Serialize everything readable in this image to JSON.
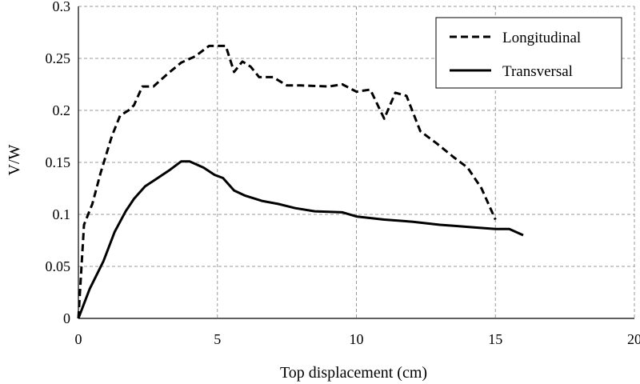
{
  "chart_data": {
    "type": "line",
    "xlabel": "Top displacement (cm)",
    "ylabel": "V/W",
    "xlim": [
      0,
      20
    ],
    "ylim": [
      0,
      0.3
    ],
    "xticks": [
      0,
      5,
      10,
      15,
      20
    ],
    "xtick_labels": [
      "0",
      "5",
      "10",
      "15",
      "20"
    ],
    "yticks": [
      0,
      0.05,
      0.1,
      0.15,
      0.2,
      0.25,
      0.3
    ],
    "ytick_labels": [
      "0",
      "0.05",
      "0.1",
      "0.15",
      "0.2",
      "0.25",
      "0.3"
    ],
    "grid": true,
    "legend_position": "top-right",
    "series": [
      {
        "name": "Longitudinal",
        "style": "dashed",
        "color": "#000000",
        "x": [
          0,
          0.2,
          0.5,
          0.8,
          1.2,
          1.5,
          1.8,
          2.0,
          2.3,
          2.7,
          3.2,
          3.7,
          4.2,
          4.7,
          5.3,
          5.6,
          5.9,
          6.2,
          6.5,
          7.0,
          7.5,
          8.0,
          9.0,
          9.5,
          10.0,
          10.5,
          11.0,
          11.4,
          11.8,
          12.3,
          12.9,
          13.5,
          14.0,
          14.5,
          15.0
        ],
        "y": [
          0,
          0.09,
          0.11,
          0.14,
          0.175,
          0.195,
          0.2,
          0.205,
          0.223,
          0.223,
          0.235,
          0.246,
          0.252,
          0.262,
          0.262,
          0.237,
          0.247,
          0.242,
          0.232,
          0.232,
          0.224,
          0.224,
          0.223,
          0.225,
          0.218,
          0.22,
          0.192,
          0.217,
          0.214,
          0.18,
          0.168,
          0.155,
          0.145,
          0.125,
          0.095
        ]
      },
      {
        "name": "Transversal",
        "style": "solid",
        "color": "#000000",
        "x": [
          0,
          0.4,
          0.9,
          1.3,
          1.7,
          2.0,
          2.4,
          2.8,
          3.3,
          3.7,
          4.0,
          4.5,
          4.9,
          5.2,
          5.6,
          6.0,
          6.6,
          7.2,
          7.8,
          8.5,
          9.5,
          10.0,
          11.0,
          12.0,
          13.0,
          13.5,
          14.0,
          15.0,
          15.5,
          16.0
        ],
        "y": [
          0,
          0.028,
          0.055,
          0.083,
          0.103,
          0.115,
          0.127,
          0.134,
          0.143,
          0.151,
          0.151,
          0.145,
          0.138,
          0.135,
          0.123,
          0.118,
          0.113,
          0.11,
          0.106,
          0.103,
          0.102,
          0.098,
          0.095,
          0.093,
          0.09,
          0.089,
          0.088,
          0.086,
          0.086,
          0.08
        ]
      }
    ]
  }
}
